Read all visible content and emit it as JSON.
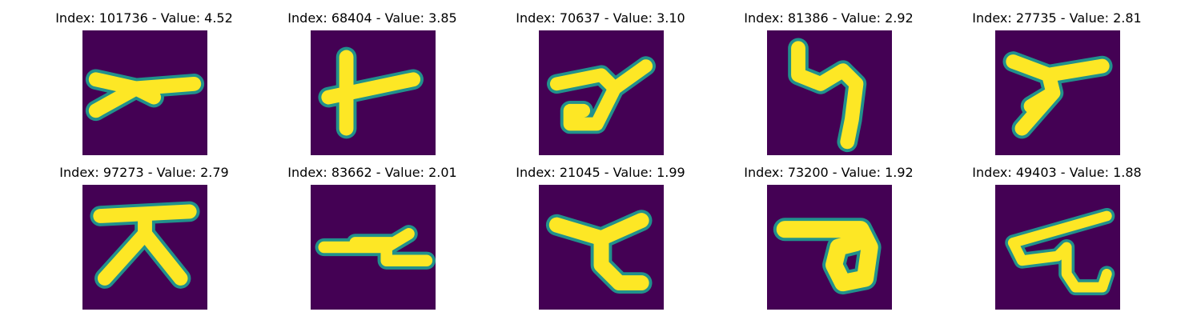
{
  "figure": {
    "colormap": {
      "background": "#440154",
      "edge": "#21918c",
      "foreground": "#fde725"
    },
    "panels": [
      {
        "title": "Index: 101736 - Value: 4.52",
        "glyph": "stroke-shape-1"
      },
      {
        "title": "Index: 68404 - Value: 3.85",
        "glyph": "stroke-shape-2"
      },
      {
        "title": "Index: 70637 - Value: 3.10",
        "glyph": "stroke-shape-3"
      },
      {
        "title": "Index: 81386 - Value: 2.92",
        "glyph": "stroke-shape-4"
      },
      {
        "title": "Index: 27735 - Value: 2.81",
        "glyph": "stroke-shape-5"
      },
      {
        "title": "Index: 97273 - Value: 2.79",
        "glyph": "stroke-shape-6"
      },
      {
        "title": "Index: 83662 - Value: 2.01",
        "glyph": "stroke-shape-7"
      },
      {
        "title": "Index: 21045 - Value: 1.99",
        "glyph": "stroke-shape-8"
      },
      {
        "title": "Index: 73200 - Value: 1.92",
        "glyph": "stroke-shape-9"
      },
      {
        "title": "Index: 49403 - Value: 1.88",
        "glyph": "stroke-shape-10"
      }
    ]
  }
}
